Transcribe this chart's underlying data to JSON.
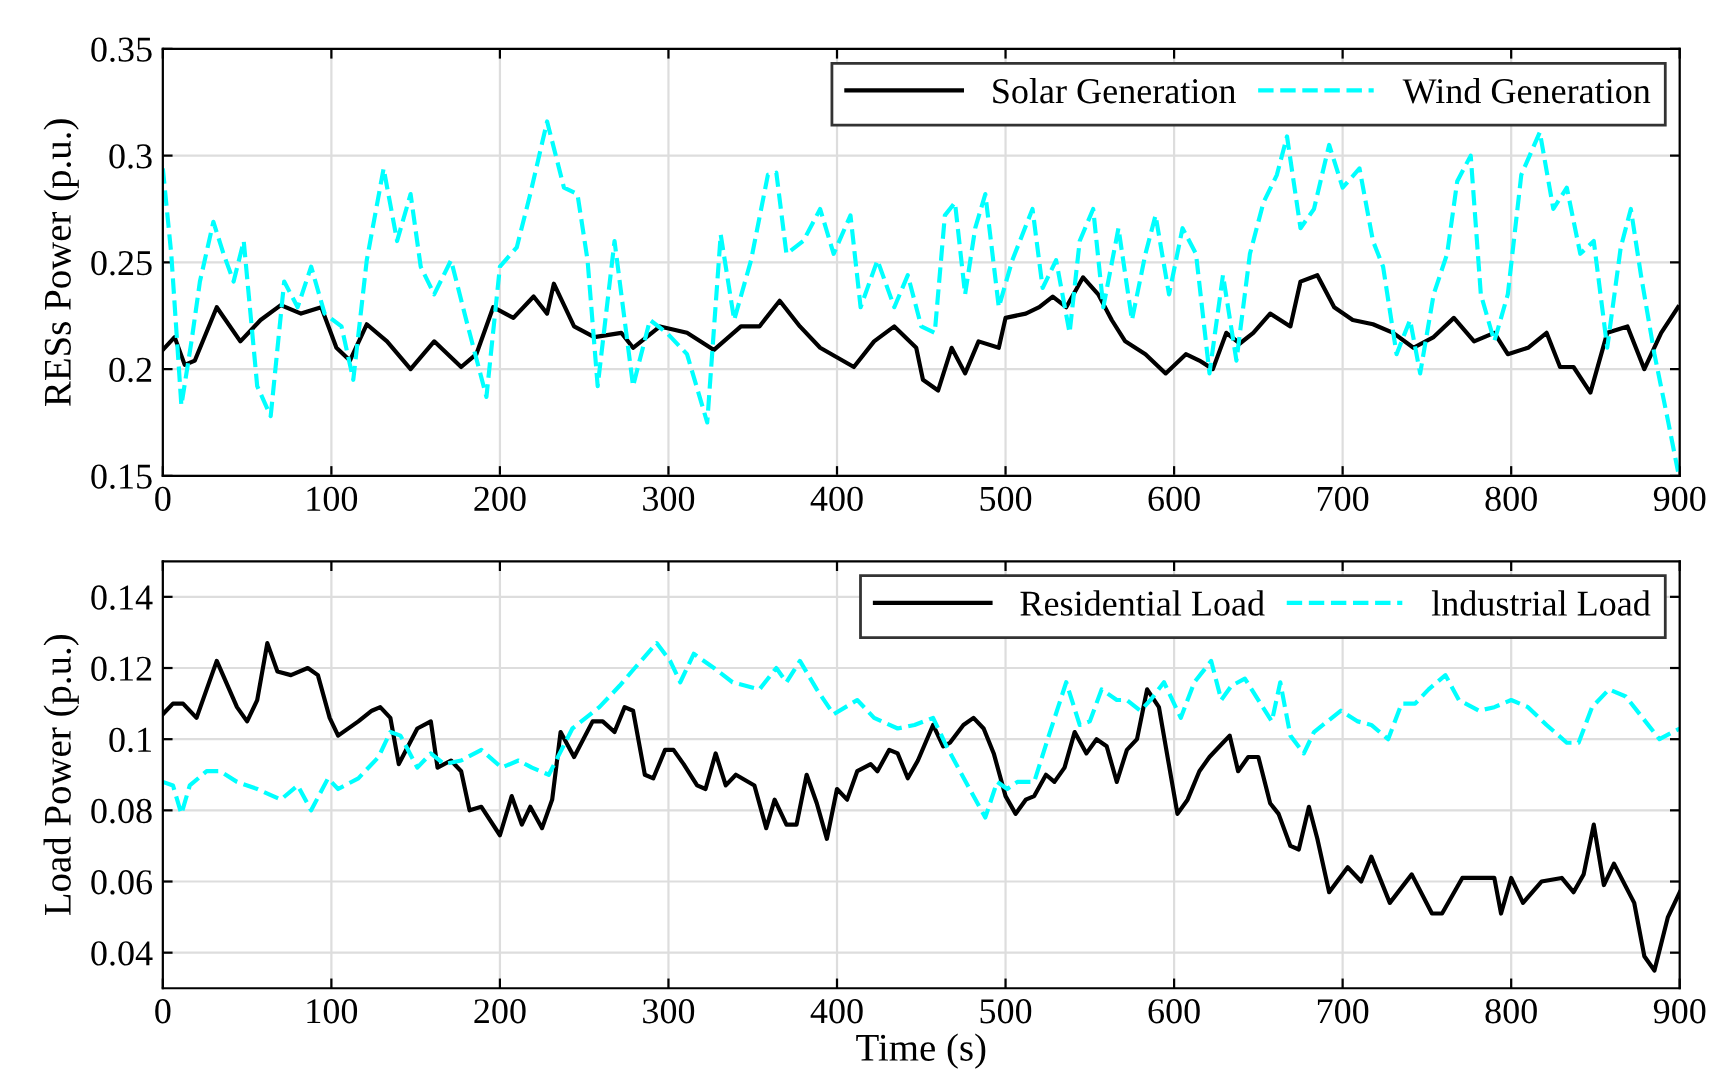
{
  "chart_data": [
    {
      "type": "line",
      "ylabel": "RESs Power (p.u.)",
      "xlim": [
        0,
        900
      ],
      "xticks": [
        0,
        100,
        200,
        300,
        400,
        500,
        600,
        700,
        800,
        900
      ],
      "ylim": [
        0.15,
        0.35
      ],
      "yticks": [
        0.15,
        0.2,
        0.25,
        0.3,
        0.35
      ],
      "grid": true,
      "legend": "top right",
      "series": [
        {
          "name": "Solar Generation",
          "color": "#000000",
          "line_style": "solid",
          "x": [
            0,
            7,
            13,
            19,
            32,
            46,
            58,
            70,
            82,
            94,
            103,
            111,
            121,
            133,
            147,
            161,
            177,
            186,
            196,
            208,
            220,
            228,
            232,
            244,
            256,
            272,
            279,
            295,
            311,
            327,
            343,
            354,
            366,
            378,
            390,
            410,
            422,
            434,
            447,
            451,
            460,
            468,
            476,
            484,
            496,
            500,
            512,
            520,
            528,
            536,
            546,
            555,
            563,
            571,
            583,
            595,
            607,
            615,
            623,
            631,
            639,
            647,
            657,
            669,
            675,
            685,
            695,
            706,
            718,
            730,
            742,
            754,
            766,
            778,
            790,
            798,
            810,
            821,
            829,
            837,
            847,
            857,
            869,
            879,
            889,
            899
          ],
          "values": [
            0.209,
            0.215,
            0.202,
            0.204,
            0.229,
            0.213,
            0.223,
            0.23,
            0.226,
            0.229,
            0.21,
            0.204,
            0.221,
            0.213,
            0.2,
            0.213,
            0.201,
            0.207,
            0.229,
            0.224,
            0.234,
            0.226,
            0.24,
            0.22,
            0.215,
            0.217,
            0.21,
            0.22,
            0.217,
            0.209,
            0.22,
            0.22,
            0.232,
            0.22,
            0.21,
            0.201,
            0.213,
            0.22,
            0.21,
            0.195,
            0.19,
            0.21,
            0.198,
            0.213,
            0.21,
            0.224,
            0.226,
            0.229,
            0.234,
            0.229,
            0.243,
            0.235,
            0.223,
            0.213,
            0.207,
            0.198,
            0.207,
            0.204,
            0.2,
            0.217,
            0.212,
            0.217,
            0.226,
            0.22,
            0.241,
            0.244,
            0.229,
            0.223,
            0.221,
            0.217,
            0.21,
            0.215,
            0.224,
            0.213,
            0.217,
            0.207,
            0.21,
            0.217,
            0.201,
            0.201,
            0.189,
            0.217,
            0.22,
            0.2,
            0.217,
            0.229
          ]
        },
        {
          "name": "Wind Generation",
          "color": "#00ffff",
          "line_style": "dashed",
          "x": [
            0,
            5,
            11,
            17,
            22,
            30,
            36,
            42,
            48,
            56,
            64,
            72,
            80,
            88,
            96,
            106,
            113,
            121,
            131,
            139,
            147,
            153,
            161,
            171,
            181,
            192,
            200,
            210,
            218,
            228,
            238,
            246,
            252,
            258,
            268,
            279,
            289,
            299,
            311,
            323,
            331,
            339,
            349,
            359,
            364,
            370,
            380,
            390,
            398,
            408,
            414,
            424,
            434,
            442,
            450,
            458,
            464,
            470,
            476,
            482,
            488,
            496,
            504,
            516,
            522,
            530,
            538,
            544,
            552,
            558,
            567,
            575,
            583,
            589,
            597,
            605,
            613,
            621,
            629,
            637,
            645,
            653,
            661,
            667,
            675,
            683,
            692,
            700,
            710,
            718,
            724,
            732,
            740,
            746,
            754,
            762,
            768,
            776,
            782,
            790,
            798,
            806,
            817,
            825,
            833,
            841,
            849,
            857,
            865,
            871,
            877,
            885,
            893,
            899
          ],
          "values": [
            0.294,
            0.254,
            0.183,
            0.213,
            0.241,
            0.269,
            0.254,
            0.241,
            0.26,
            0.192,
            0.178,
            0.241,
            0.229,
            0.248,
            0.226,
            0.22,
            0.195,
            0.251,
            0.294,
            0.26,
            0.282,
            0.248,
            0.235,
            0.251,
            0.22,
            0.187,
            0.248,
            0.257,
            0.282,
            0.316,
            0.285,
            0.282,
            0.251,
            0.192,
            0.26,
            0.192,
            0.223,
            0.217,
            0.207,
            0.175,
            0.263,
            0.223,
            0.251,
            0.291,
            0.292,
            0.254,
            0.26,
            0.275,
            0.254,
            0.272,
            0.229,
            0.251,
            0.229,
            0.244,
            0.22,
            0.217,
            0.272,
            0.278,
            0.235,
            0.266,
            0.282,
            0.229,
            0.251,
            0.275,
            0.238,
            0.251,
            0.217,
            0.26,
            0.275,
            0.229,
            0.266,
            0.223,
            0.254,
            0.272,
            0.235,
            0.266,
            0.254,
            0.198,
            0.244,
            0.204,
            0.254,
            0.278,
            0.291,
            0.309,
            0.266,
            0.275,
            0.305,
            0.285,
            0.294,
            0.26,
            0.248,
            0.207,
            0.223,
            0.198,
            0.235,
            0.254,
            0.288,
            0.3,
            0.235,
            0.213,
            0.235,
            0.291,
            0.311,
            0.275,
            0.285,
            0.254,
            0.26,
            0.21,
            0.257,
            0.275,
            0.244,
            0.207,
            0.176,
            0.152
          ]
        }
      ]
    },
    {
      "type": "line",
      "xlabel": "Time (s)",
      "ylabel": "Load Power (p.u.)",
      "xlim": [
        0,
        900
      ],
      "xticks": [
        0,
        100,
        200,
        300,
        400,
        500,
        600,
        700,
        800,
        900
      ],
      "ylim": [
        0.03,
        0.15
      ],
      "yticks": [
        0.04,
        0.06,
        0.08,
        0.1,
        0.12,
        0.14
      ],
      "grid": true,
      "legend": "top right",
      "series": [
        {
          "name": "Residential Load",
          "color": "#000000",
          "line_style": "solid",
          "x": [
            0,
            6,
            12,
            20,
            32,
            44,
            50,
            56,
            62,
            68,
            76,
            86,
            92,
            99,
            104,
            116,
            124,
            129,
            135,
            140,
            151,
            159,
            163,
            171,
            177,
            182,
            189,
            200,
            207,
            213,
            218,
            225,
            231,
            236,
            244,
            255,
            261,
            268,
            274,
            279,
            286,
            291,
            298,
            303,
            309,
            317,
            322,
            328,
            334,
            340,
            351,
            358,
            363,
            370,
            376,
            382,
            388,
            394,
            400,
            406,
            412,
            420,
            424,
            431,
            436,
            442,
            448,
            457,
            463,
            467,
            475,
            481,
            487,
            493,
            500,
            506,
            512,
            517,
            524,
            529,
            535,
            541,
            548,
            554,
            560,
            566,
            572,
            578,
            584,
            591,
            602,
            608,
            615,
            621,
            627,
            633,
            638,
            644,
            650,
            657,
            662,
            669,
            674,
            680,
            685,
            692,
            703,
            711,
            717,
            728,
            741,
            753,
            759,
            771,
            779,
            790,
            794,
            800,
            807,
            818,
            830,
            837,
            843,
            849,
            855,
            861,
            873,
            879,
            885,
            893,
            900
          ],
          "values": [
            0.107,
            0.11,
            0.11,
            0.106,
            0.122,
            0.109,
            0.105,
            0.111,
            0.127,
            0.119,
            0.118,
            0.12,
            0.118,
            0.106,
            0.101,
            0.105,
            0.108,
            0.109,
            0.106,
            0.093,
            0.103,
            0.105,
            0.092,
            0.094,
            0.091,
            0.08,
            0.081,
            0.073,
            0.084,
            0.076,
            0.081,
            0.075,
            0.083,
            0.102,
            0.095,
            0.105,
            0.105,
            0.102,
            0.109,
            0.108,
            0.09,
            0.089,
            0.097,
            0.097,
            0.093,
            0.087,
            0.086,
            0.096,
            0.087,
            0.09,
            0.087,
            0.075,
            0.083,
            0.076,
            0.076,
            0.09,
            0.082,
            0.072,
            0.086,
            0.083,
            0.091,
            0.093,
            0.091,
            0.097,
            0.096,
            0.089,
            0.094,
            0.104,
            0.098,
            0.099,
            0.104,
            0.106,
            0.103,
            0.096,
            0.084,
            0.079,
            0.083,
            0.084,
            0.09,
            0.088,
            0.092,
            0.102,
            0.096,
            0.1,
            0.098,
            0.088,
            0.097,
            0.1,
            0.114,
            0.109,
            0.079,
            0.083,
            0.091,
            0.095,
            0.098,
            0.101,
            0.091,
            0.095,
            0.095,
            0.082,
            0.079,
            0.07,
            0.069,
            0.081,
            0.072,
            0.057,
            0.064,
            0.06,
            0.067,
            0.054,
            0.062,
            0.051,
            0.051,
            0.061,
            0.061,
            0.061,
            0.051,
            0.061,
            0.054,
            0.06,
            0.061,
            0.057,
            0.062,
            0.076,
            0.059,
            0.065,
            0.054,
            0.039,
            0.035,
            0.05,
            0.057
          ]
        },
        {
          "name": "lndustrial Load",
          "color": "#00ffff",
          "line_style": "dashed",
          "x": [
            0,
            6,
            11,
            16,
            26,
            34,
            44,
            56,
            70,
            80,
            88,
            98,
            104,
            116,
            128,
            135,
            141,
            151,
            159,
            167,
            177,
            189,
            201,
            211,
            219,
            229,
            243,
            259,
            271,
            280,
            293,
            301,
            307,
            315,
            327,
            338,
            354,
            364,
            370,
            378,
            388,
            398,
            412,
            422,
            436,
            446,
            457,
            465,
            473,
            481,
            488,
            495,
            501,
            507,
            517,
            525,
            536,
            544,
            550,
            557,
            566,
            572,
            580,
            586,
            594,
            604,
            612,
            622,
            628,
            634,
            642,
            650,
            658,
            663,
            669,
            677,
            683,
            691,
            699,
            709,
            717,
            727,
            735,
            743,
            751,
            761,
            769,
            781,
            790,
            800,
            810,
            821,
            833,
            840,
            848,
            858,
            868,
            878,
            888,
            900
          ],
          "values": [
            0.088,
            0.087,
            0.079,
            0.087,
            0.091,
            0.091,
            0.088,
            0.086,
            0.083,
            0.087,
            0.08,
            0.089,
            0.086,
            0.089,
            0.095,
            0.102,
            0.101,
            0.092,
            0.096,
            0.093,
            0.094,
            0.097,
            0.092,
            0.094,
            0.092,
            0.09,
            0.103,
            0.109,
            0.115,
            0.12,
            0.127,
            0.122,
            0.116,
            0.124,
            0.12,
            0.116,
            0.114,
            0.12,
            0.116,
            0.122,
            0.114,
            0.107,
            0.111,
            0.106,
            0.103,
            0.104,
            0.106,
            0.098,
            0.091,
            0.084,
            0.078,
            0.088,
            0.086,
            0.088,
            0.088,
            0.1,
            0.116,
            0.104,
            0.105,
            0.114,
            0.111,
            0.111,
            0.108,
            0.111,
            0.116,
            0.106,
            0.116,
            0.122,
            0.111,
            0.115,
            0.117,
            0.111,
            0.105,
            0.116,
            0.101,
            0.096,
            0.102,
            0.105,
            0.108,
            0.105,
            0.104,
            0.1,
            0.11,
            0.11,
            0.114,
            0.118,
            0.111,
            0.108,
            0.109,
            0.111,
            0.109,
            0.104,
            0.099,
            0.099,
            0.109,
            0.114,
            0.112,
            0.106,
            0.1,
            0.103
          ]
        }
      ]
    }
  ]
}
